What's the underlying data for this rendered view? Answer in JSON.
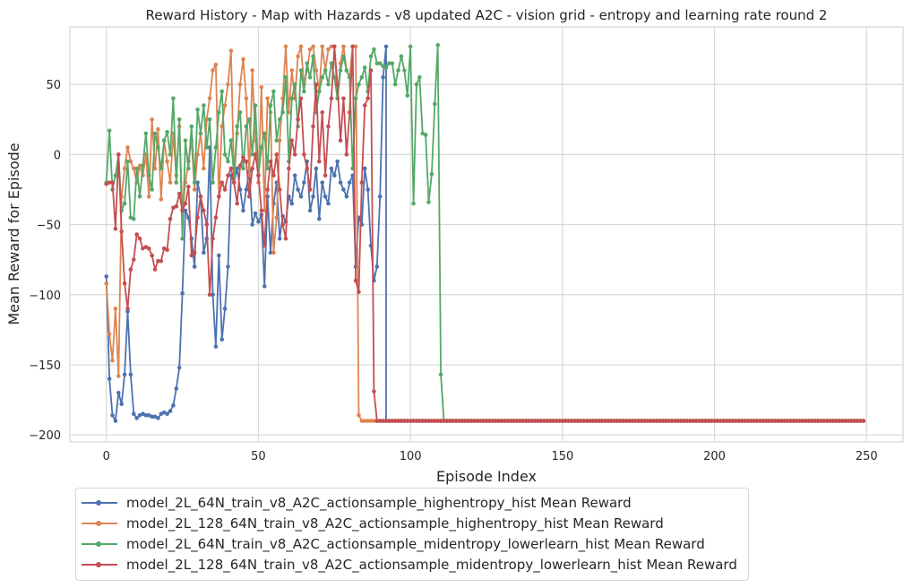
{
  "chart_data": {
    "type": "line",
    "title": "Reward History - Map with Hazards - v8 updated A2C - vision grid - entropy and learning rate round 2",
    "xlabel": "Episode Index",
    "ylabel": "Mean Reward for Episode",
    "xlim": [
      -12,
      262
    ],
    "ylim": [
      -205,
      91
    ],
    "x_ticks": [
      0,
      50,
      100,
      150,
      200,
      250
    ],
    "x_tick_labels": [
      "0",
      "50",
      "100",
      "150",
      "200",
      "250"
    ],
    "y_ticks": [
      -200,
      -150,
      -100,
      -50,
      0,
      50
    ],
    "y_tick_labels": [
      "−200",
      "−150",
      "−100",
      "−50",
      "0",
      "50"
    ],
    "grid": true,
    "legend_position": "below plot, left",
    "series": [
      {
        "name": "model_2L_64N_train_v8_A2C_actionsample_highentropy_hist Mean Reward",
        "color": "#4c72b0",
        "x": [
          0,
          1,
          2,
          3,
          4,
          5,
          6,
          7,
          8,
          9,
          10,
          11,
          12,
          13,
          14,
          15,
          16,
          17,
          18,
          19,
          20,
          21,
          22,
          23,
          24,
          25,
          26,
          27,
          28,
          29,
          30,
          31,
          32,
          33,
          34,
          35,
          36,
          37,
          38,
          39,
          40,
          41,
          42,
          43,
          44,
          45,
          46,
          47,
          48,
          49,
          50,
          51,
          52,
          53,
          54,
          55,
          56,
          57,
          58,
          59,
          60,
          61,
          62,
          63,
          64,
          65,
          66,
          67,
          68,
          69,
          70,
          71,
          72,
          73,
          74,
          75,
          76,
          77,
          78,
          79,
          80,
          81,
          82,
          83,
          84,
          85,
          86,
          87,
          88,
          89,
          90,
          91,
          92
        ],
        "y": [
          -87,
          -160,
          -186,
          -190,
          -170,
          -178,
          -157,
          -112,
          -157,
          -185,
          -188,
          -186,
          -185,
          -186,
          -186,
          -187,
          -187,
          -188,
          -185,
          -184,
          -185,
          -183,
          -179,
          -167,
          -152,
          -99,
          -40,
          -45,
          -60,
          -80,
          -20,
          -30,
          -70,
          -60,
          5,
          -100,
          -137,
          -72,
          -132,
          -110,
          -80,
          -15,
          -20,
          -10,
          -25,
          -40,
          -25,
          -12,
          -50,
          -42,
          -48,
          -43,
          -94,
          -30,
          -70,
          -35,
          -20,
          -60,
          -44,
          -48,
          -30,
          -35,
          -15,
          -25,
          -30,
          -20,
          -5,
          -40,
          -30,
          -10,
          -46,
          -20,
          -30,
          -35,
          -10,
          -15,
          -5,
          -20,
          -25,
          -30,
          -20,
          -15,
          -80,
          -45,
          -50,
          -10,
          -25,
          -65,
          -90,
          -80,
          -30,
          55,
          77
        ],
        "tail": {
          "x_start": 92,
          "x_end": 249,
          "y": -190
        }
      },
      {
        "name": "model_2L_128_64N_train_v8_A2C_actionsample_highentropy_hist Mean Reward",
        "color": "#dd8452",
        "x": [
          0,
          1,
          2,
          3,
          4,
          5,
          6,
          7,
          8,
          9,
          10,
          11,
          12,
          13,
          14,
          15,
          16,
          17,
          18,
          19,
          20,
          21,
          22,
          23,
          24,
          25,
          26,
          27,
          28,
          29,
          30,
          31,
          32,
          33,
          34,
          35,
          36,
          37,
          38,
          39,
          40,
          41,
          42,
          43,
          44,
          45,
          46,
          47,
          48,
          49,
          50,
          51,
          52,
          53,
          54,
          55,
          56,
          57,
          58,
          59,
          60,
          61,
          62,
          63,
          64,
          65,
          66,
          67,
          68,
          69,
          70,
          71,
          72,
          73,
          74,
          75,
          76,
          77,
          78,
          79,
          80,
          81,
          82,
          83
        ],
        "y": [
          -92,
          -128,
          -147,
          -110,
          -158,
          -30,
          -10,
          5,
          -5,
          -10,
          -20,
          -8,
          -15,
          0,
          -30,
          25,
          -10,
          18,
          -32,
          10,
          -5,
          -20,
          15,
          -15,
          20,
          -40,
          -20,
          -5,
          10,
          -25,
          0,
          15,
          -10,
          25,
          40,
          60,
          64,
          -30,
          20,
          35,
          50,
          74,
          -20,
          15,
          50,
          68,
          40,
          -15,
          60,
          10,
          -20,
          48,
          -40,
          40,
          30,
          -70,
          -45,
          10,
          40,
          77,
          30,
          60,
          40,
          70,
          77,
          50,
          60,
          75,
          77,
          60,
          45,
          77,
          60,
          75,
          77,
          77,
          40,
          65,
          77,
          60,
          55,
          77,
          77,
          -186
        ],
        "tail": {
          "x_start": 84,
          "x_end": 249,
          "y": -190
        }
      },
      {
        "name": "model_2L_64N_train_v8_A2C_actionsample_midentropy_lowerlearn_hist Mean Reward",
        "color": "#55a868",
        "x": [
          0,
          1,
          2,
          3,
          4,
          5,
          6,
          7,
          8,
          9,
          10,
          11,
          12,
          13,
          14,
          15,
          16,
          17,
          18,
          19,
          20,
          21,
          22,
          23,
          24,
          25,
          26,
          27,
          28,
          29,
          30,
          31,
          32,
          33,
          34,
          35,
          36,
          37,
          38,
          39,
          40,
          41,
          42,
          43,
          44,
          45,
          46,
          47,
          48,
          49,
          50,
          51,
          52,
          53,
          54,
          55,
          56,
          57,
          58,
          59,
          60,
          61,
          62,
          63,
          64,
          65,
          66,
          67,
          68,
          69,
          70,
          71,
          72,
          73,
          74,
          75,
          76,
          77,
          78,
          79,
          80,
          81,
          82,
          83,
          84,
          85,
          86,
          87,
          88,
          89,
          90,
          91,
          92,
          93,
          94,
          95,
          96,
          97,
          98,
          99,
          100,
          101,
          102,
          103,
          104,
          105,
          106,
          107,
          108,
          109,
          110,
          111
        ],
        "y": [
          -20,
          17,
          -25,
          -15,
          0,
          -40,
          -35,
          -5,
          -45,
          -46,
          -10,
          -30,
          -8,
          15,
          -15,
          -25,
          15,
          5,
          -10,
          10,
          16,
          0,
          40,
          -20,
          25,
          -60,
          10,
          -10,
          20,
          -20,
          32,
          15,
          35,
          5,
          25,
          -20,
          5,
          30,
          45,
          0,
          -5,
          10,
          -15,
          20,
          30,
          -10,
          20,
          25,
          0,
          35,
          -15,
          5,
          15,
          -10,
          35,
          45,
          10,
          25,
          30,
          55,
          -5,
          40,
          50,
          20,
          60,
          45,
          65,
          55,
          70,
          30,
          45,
          55,
          60,
          50,
          65,
          55,
          40,
          60,
          70,
          60,
          55,
          -10,
          40,
          50,
          55,
          62,
          45,
          70,
          75,
          65,
          65,
          63,
          62,
          65,
          65,
          50,
          60,
          70,
          60,
          42,
          77,
          -35,
          50,
          55,
          15,
          14,
          -34,
          -14,
          36,
          78,
          -157,
          -190
        ],
        "tail": {
          "x_start": 111,
          "x_end": 249,
          "y": -190
        }
      },
      {
        "name": "model_2L_128_64N_train_v8_A2C_actionsample_midentropy_lowerlearn_hist Mean Reward",
        "color": "#c44e52",
        "x": [
          0,
          1,
          2,
          3,
          4,
          5,
          6,
          7,
          8,
          9,
          10,
          11,
          12,
          13,
          14,
          15,
          16,
          17,
          18,
          19,
          20,
          21,
          22,
          23,
          24,
          25,
          26,
          27,
          28,
          29,
          30,
          31,
          32,
          33,
          34,
          35,
          36,
          37,
          38,
          39,
          40,
          41,
          42,
          43,
          44,
          45,
          46,
          47,
          48,
          49,
          50,
          51,
          52,
          53,
          54,
          55,
          56,
          57,
          58,
          59,
          60,
          61,
          62,
          63,
          64,
          65,
          66,
          67,
          68,
          69,
          70,
          71,
          72,
          73,
          74,
          75,
          76,
          77,
          78,
          79,
          80,
          81,
          82,
          83,
          84,
          85,
          86,
          87,
          88,
          89
        ],
        "y": [
          -21,
          -20,
          -20,
          -53,
          0,
          -55,
          -92,
          -110,
          -82,
          -75,
          -57,
          -60,
          -67,
          -66,
          -67,
          -72,
          -82,
          -76,
          -76,
          -67,
          -68,
          -46,
          -38,
          -37,
          -28,
          -40,
          -35,
          -23,
          -72,
          -70,
          -45,
          -30,
          -40,
          -50,
          -100,
          -60,
          -45,
          -30,
          -20,
          -25,
          -15,
          -10,
          -20,
          -35,
          -8,
          -2,
          -5,
          -30,
          -10,
          0,
          -15,
          -40,
          -65,
          -25,
          -5,
          -15,
          0,
          -25,
          -50,
          -60,
          -10,
          10,
          0,
          25,
          40,
          0,
          -10,
          -25,
          20,
          50,
          -5,
          30,
          -15,
          20,
          40,
          77,
          50,
          10,
          40,
          0,
          30,
          77,
          -90,
          -98,
          -20,
          35,
          40,
          60,
          -169,
          -190
        ],
        "tail": {
          "x_start": 90,
          "x_end": 249,
          "y": -190
        }
      }
    ]
  }
}
